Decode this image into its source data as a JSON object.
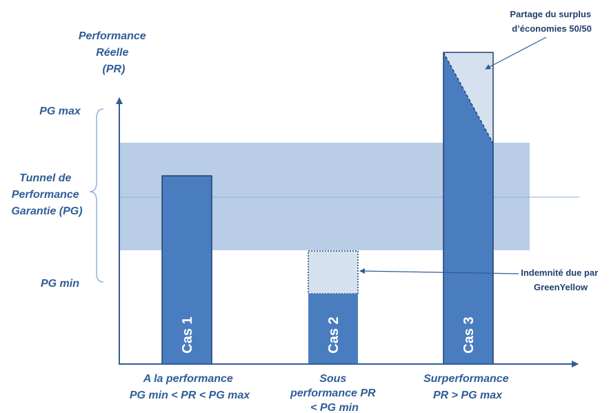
{
  "y_axis": {
    "title_lines": [
      "Performance",
      "Réelle",
      "(PR)"
    ],
    "pg_max_label": "PG max",
    "pg_min_label": "PG min",
    "tunnel_label_lines": [
      "Tunnel de",
      "Performance",
      "Garantie (PG)"
    ]
  },
  "cases": [
    {
      "bar_label": "Cas 1",
      "caption_lines": [
        "A la performance",
        "PG min < PR < PG max"
      ]
    },
    {
      "bar_label": "Cas 2",
      "caption_lines": [
        "Sous",
        "performance PR",
        "< PG min"
      ]
    },
    {
      "bar_label": "Cas 3",
      "caption_lines": [
        "Surperformance",
        "PR > PG max"
      ]
    }
  ],
  "annotations": {
    "surplus_lines": [
      "Partage du surplus",
      "d’économies 50/50"
    ],
    "indemnity_lines": [
      "Indemnité due par",
      "GreenYellow"
    ]
  },
  "colors": {
    "bar": "#4a7dbf",
    "tunnel": "#b9cde6",
    "light_fill": "#d6e1f0",
    "axis": "#2f5c96",
    "text": "#2f5c96"
  }
}
